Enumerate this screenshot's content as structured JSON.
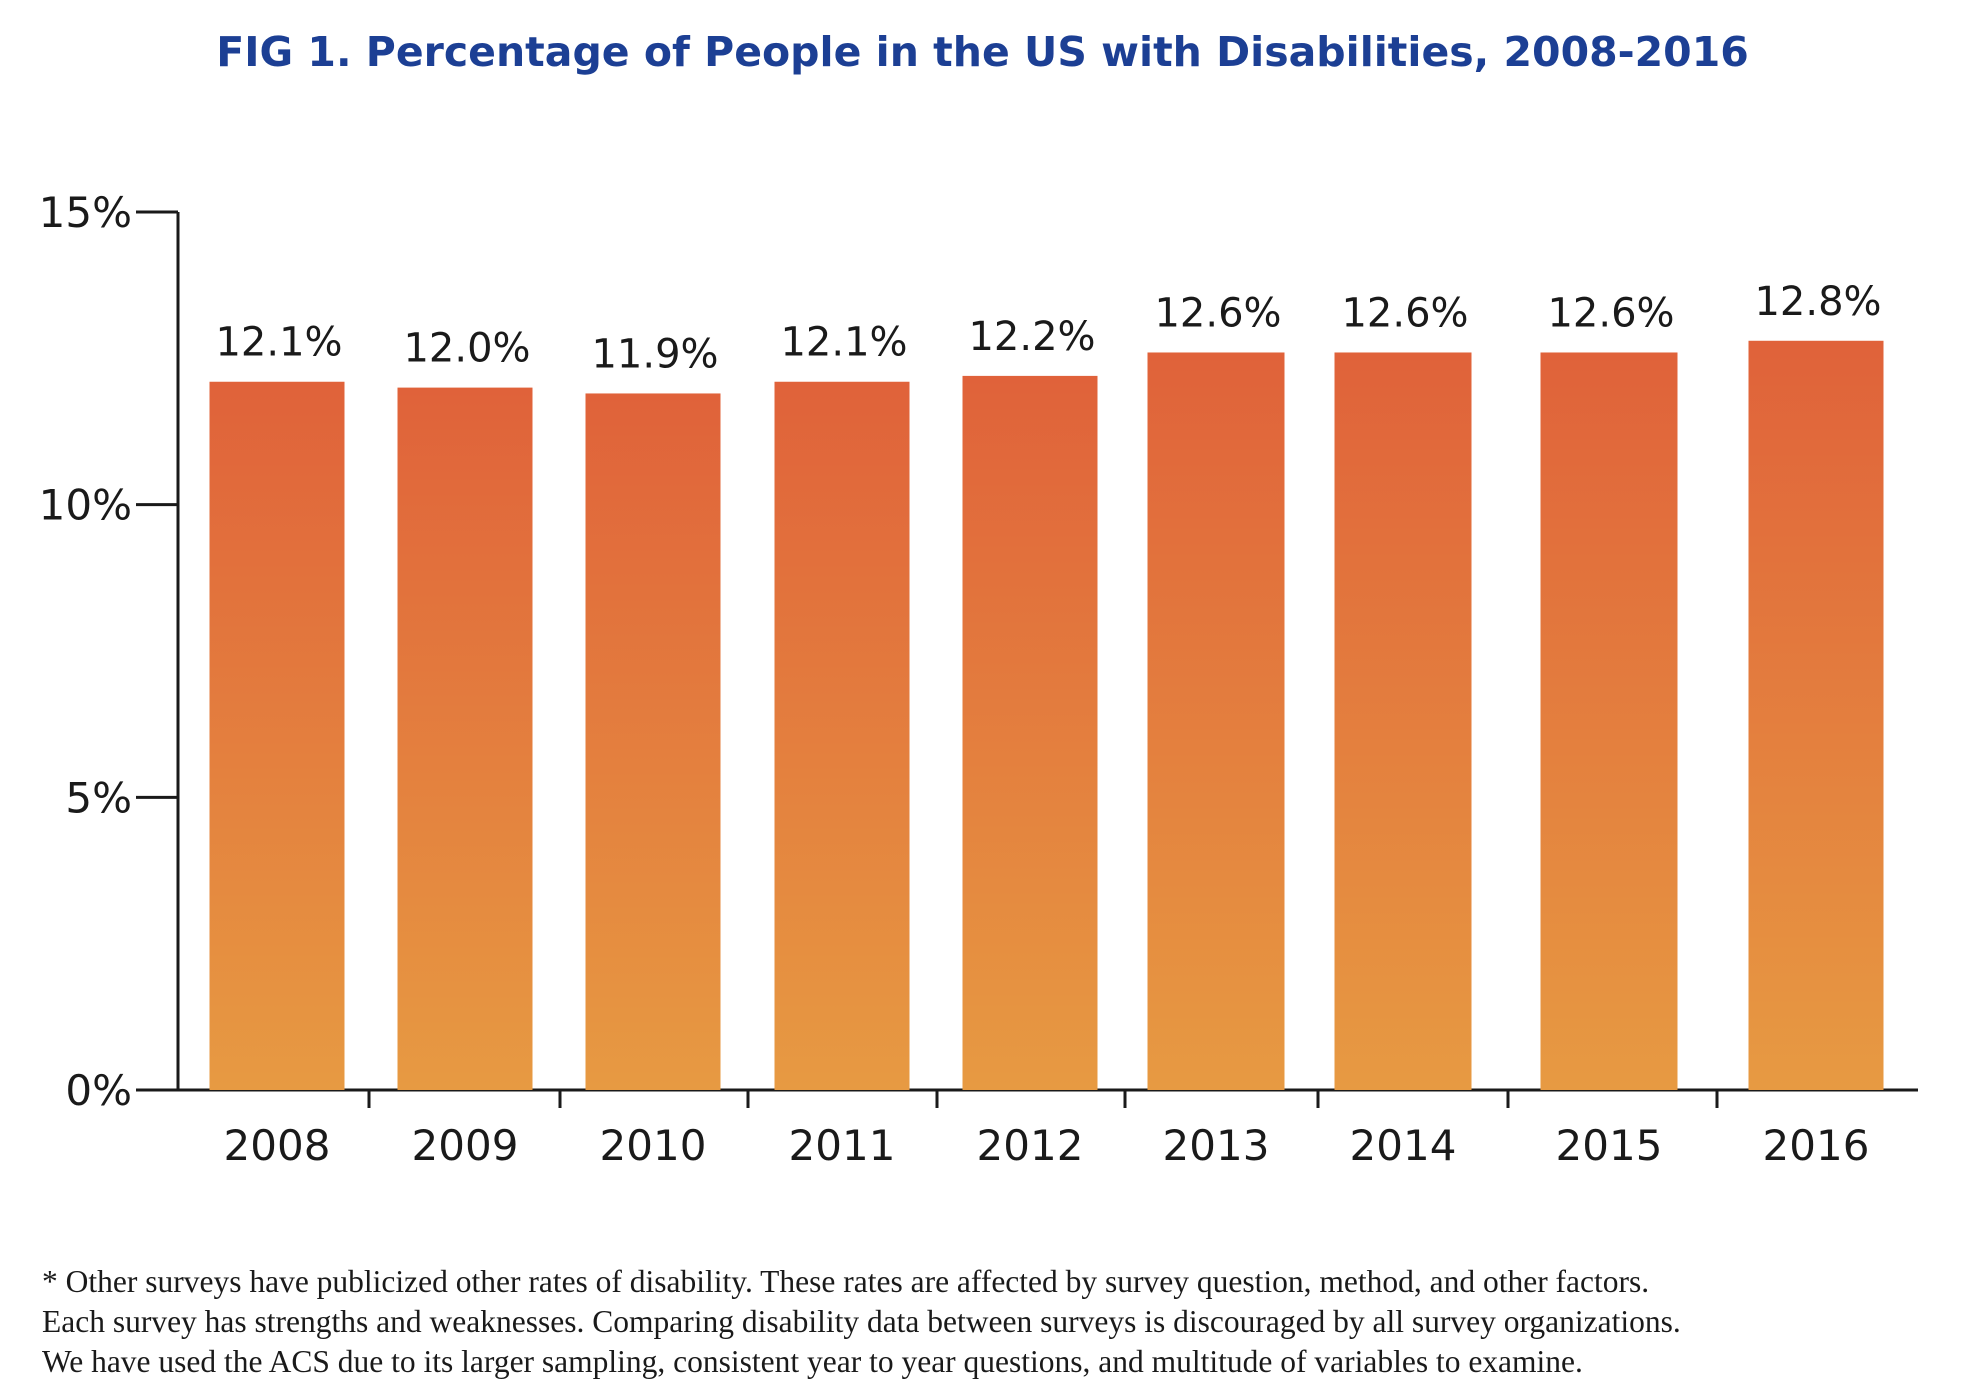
{
  "chart_data": {
    "type": "bar",
    "title": "FIG 1. Percentage of People in the US with Disabilities, 2008-2016",
    "categories": [
      "2008",
      "2009",
      "2010",
      "2011",
      "2012",
      "2013",
      "2014",
      "2015",
      "2016"
    ],
    "values": [
      12.1,
      12.0,
      11.9,
      12.1,
      12.2,
      12.6,
      12.6,
      12.6,
      12.8
    ],
    "value_labels": [
      "12.1%",
      "12.0%",
      "11.9%",
      "12.1%",
      "12.2%",
      "12.6%",
      "12.6%",
      "12.6%",
      "12.8%"
    ],
    "xlabel": "",
    "ylabel": "",
    "ylim": [
      0,
      15
    ],
    "yticks": [
      0,
      5,
      10,
      15
    ],
    "ytick_labels": [
      "0%",
      "5%",
      "10%",
      "15%"
    ],
    "grid": false,
    "legend": "none",
    "bar_color_top": "#e0623a",
    "bar_color_bottom": "#e79a42"
  },
  "title_color": "#1c3f94",
  "footnote": [
    "* Other surveys have publicized other rates of disability. These rates are affected by survey question, method, and other factors.",
    "Each survey has strengths and weaknesses. Comparing disability data between surveys is discouraged by all survey organizations.",
    "We have used the ACS due to its larger sampling, consistent year to year questions, and multitude of variables to examine."
  ]
}
